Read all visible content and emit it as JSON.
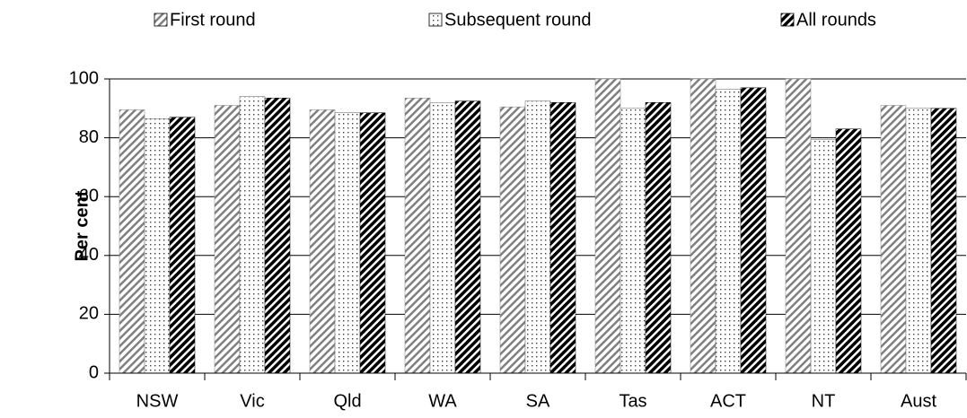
{
  "chart_data": {
    "type": "bar",
    "y_label": "Per cent",
    "categories": [
      "NSW",
      "Vic",
      "Qld",
      "WA",
      "SA",
      "Tas",
      "ACT",
      "NT",
      "Aust"
    ],
    "series": [
      {
        "name": "First round",
        "pattern": "hatch-light",
        "color": "#808080",
        "values": [
          89.5,
          91,
          89.5,
          93.5,
          90.5,
          100,
          100,
          100,
          91
        ]
      },
      {
        "name": "Subsequent round",
        "pattern": "dots",
        "color": "#606060",
        "values": [
          86.5,
          94,
          88.5,
          92,
          92.5,
          90,
          96.5,
          79.5,
          90
        ]
      },
      {
        "name": "All rounds",
        "pattern": "hatch-dark",
        "color": "#000000",
        "values": [
          87,
          93.5,
          88.5,
          92.5,
          92,
          92,
          97,
          83,
          90
        ]
      }
    ],
    "ylim": [
      0,
      100
    ],
    "yticks": [
      0,
      20,
      40,
      60,
      80,
      100
    ],
    "grid": true,
    "legend": "top"
  }
}
